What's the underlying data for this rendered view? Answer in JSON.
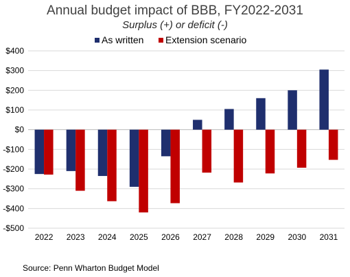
{
  "chart_data": {
    "type": "bar",
    "title": "Annual budget impact of BBB, FY2022-2031",
    "subtitle": "Surplus (+) or deficit (-)",
    "categories": [
      "2022",
      "2023",
      "2024",
      "2025",
      "2026",
      "2027",
      "2028",
      "2029",
      "2030",
      "2031"
    ],
    "series": [
      {
        "name": "As written",
        "color": "#1f2f6e",
        "values": [
          -225,
          -210,
          -235,
          -290,
          -135,
          50,
          105,
          160,
          200,
          305
        ]
      },
      {
        "name": "Extension scenario",
        "color": "#c00000",
        "values": [
          -228,
          -310,
          -363,
          -420,
          -373,
          -218,
          -268,
          -222,
          -193,
          -153
        ]
      }
    ],
    "ylim": [
      -500,
      400
    ],
    "yticks": [
      400,
      300,
      200,
      100,
      0,
      -100,
      -200,
      -300,
      -400,
      -500
    ],
    "ytick_labels": [
      "$400",
      "$300",
      "$200",
      "$100",
      "$0",
      "-$100",
      "-$200",
      "-$300",
      "-$400",
      "-$500"
    ],
    "grid": true,
    "legend": "top-center",
    "source": "Source: Penn Wharton Budget Model"
  }
}
